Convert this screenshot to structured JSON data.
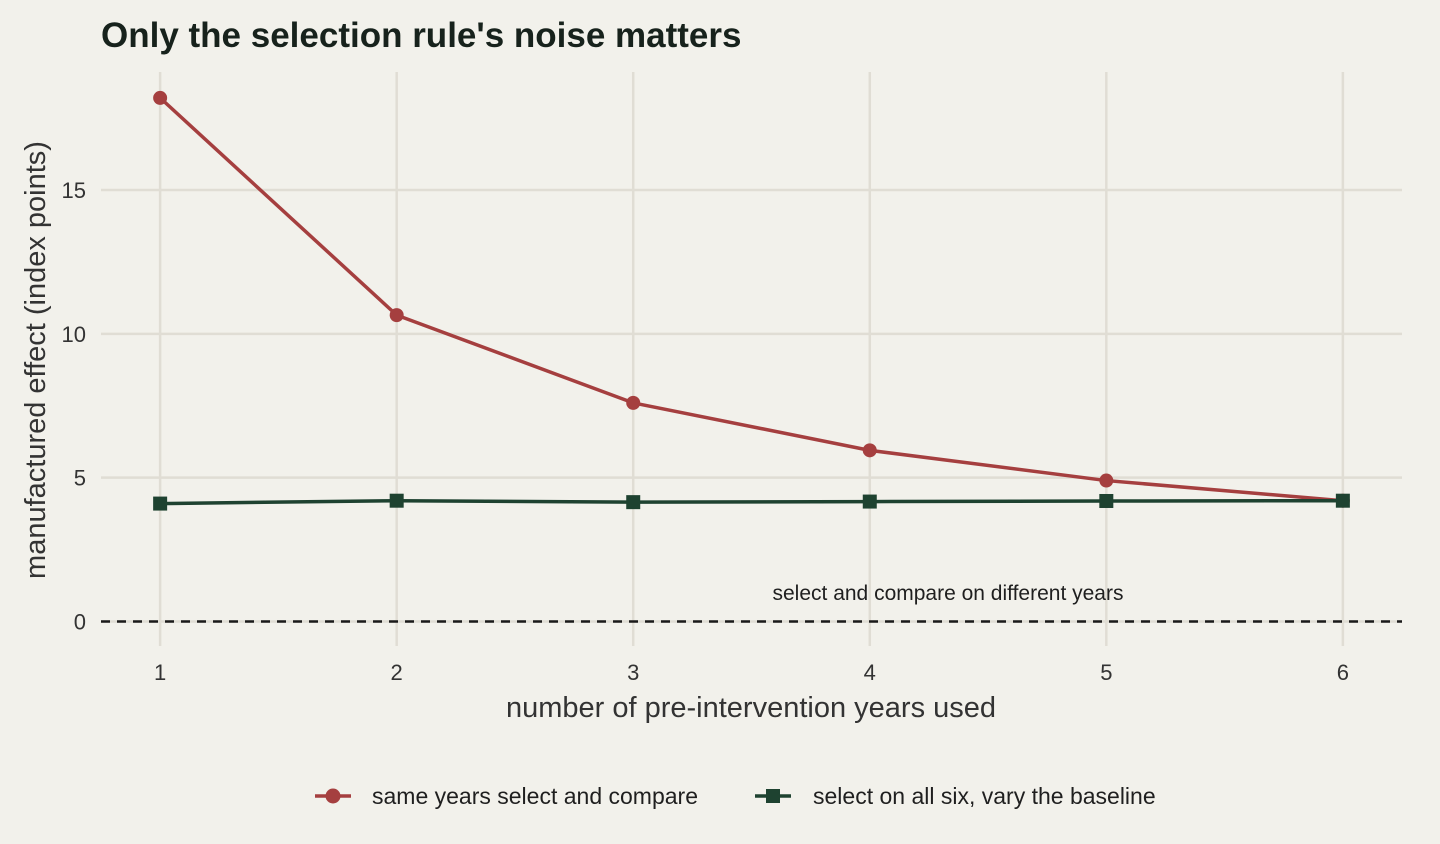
{
  "chart_data": {
    "type": "line",
    "title": "Only the selection rule's noise matters",
    "xlabel": "number of pre-intervention years used",
    "ylabel": "manufactured effect (index points)",
    "x": [
      1,
      2,
      3,
      4,
      5,
      6
    ],
    "x_tick_labels": [
      "1",
      "2",
      "3",
      "4",
      "5",
      "6"
    ],
    "y_ticks": [
      0,
      5,
      10,
      15
    ],
    "y_tick_labels": [
      "0",
      "5",
      "10",
      "15"
    ],
    "xlim": [
      0.75,
      6.25
    ],
    "ylim": [
      -0.85,
      19.1
    ],
    "grid": true,
    "legend_position": "bottom",
    "series": [
      {
        "name": "same years select and compare",
        "color": "#a53f3f",
        "marker": "circle",
        "values": [
          18.2,
          10.65,
          7.6,
          5.95,
          4.9,
          4.2
        ]
      },
      {
        "name": "select on all six, vary the baseline",
        "color": "#1e4230",
        "marker": "square",
        "values": [
          4.1,
          4.2,
          4.15,
          4.17,
          4.19,
          4.2
        ]
      }
    ],
    "reference_line": {
      "y": 0,
      "style": "dashed",
      "color": "#1a1a1a",
      "label": "select and compare on different years"
    }
  }
}
